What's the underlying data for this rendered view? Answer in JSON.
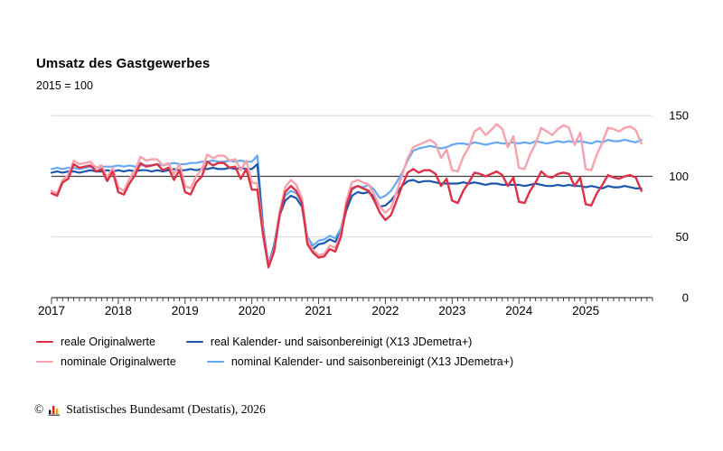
{
  "header": {
    "title": "Umsatz des Gastgewerbes",
    "subtitle": "2015 = 100"
  },
  "chart_data": {
    "type": "line",
    "title": "Umsatz des Gastgewerbes",
    "subtitle": "2015 = 100",
    "x_start": "2017-01",
    "x_end": "2025-11",
    "x_axis": {
      "years": [
        2017,
        2018,
        2019,
        2020,
        2021,
        2022,
        2023,
        2024,
        2025
      ],
      "months_per_year": 12,
      "axis_months_total": 108,
      "minor_tick": "month",
      "major_tick": "year"
    },
    "y_axis": {
      "ticks": [
        0,
        50,
        100,
        150
      ],
      "ylim": [
        0,
        150
      ],
      "reference_line": 100,
      "labels_side": "right"
    },
    "grid": "horizontal-light",
    "legend_position": "bottom",
    "series": [
      {
        "id": "real_orig",
        "label": "reale Originalwerte",
        "color": "#db3247",
        "width": 2.4,
        "z": 4,
        "values": [
          86,
          84,
          95,
          98,
          110,
          107,
          108,
          109,
          104,
          106,
          96,
          104,
          87,
          85,
          94,
          101,
          111,
          108,
          109,
          110,
          105,
          107,
          97,
          105,
          87,
          85,
          95,
          100,
          112,
          109,
          111,
          111,
          107,
          108,
          98,
          106,
          89,
          89,
          52,
          25,
          38,
          68,
          87,
          92,
          88,
          78,
          44,
          37,
          33,
          34,
          40,
          38,
          50,
          76,
          90,
          92,
          90,
          88,
          80,
          70,
          64,
          68,
          80,
          92,
          103,
          106,
          103,
          105,
          105,
          102,
          92,
          98,
          80,
          78,
          88,
          95,
          103,
          102,
          100,
          102,
          104,
          101,
          92,
          99,
          79,
          78,
          88,
          95,
          104,
          100,
          99,
          102,
          103,
          102,
          92,
          99,
          77,
          76,
          86,
          93,
          101,
          99,
          98,
          100,
          101,
          99,
          88
        ]
      },
      {
        "id": "real_adj",
        "label": "real Kalender- und saisonbereinigt (X13 JDemetra+)",
        "color": "#1957ae",
        "width": 2.2,
        "z": 2,
        "values": [
          103,
          104,
          103,
          104,
          104,
          103,
          104,
          105,
          104,
          104,
          105,
          104,
          105,
          104,
          105,
          104,
          105,
          105,
          104,
          105,
          104,
          105,
          106,
          105,
          105,
          106,
          105,
          106,
          106,
          107,
          106,
          106,
          107,
          106,
          107,
          106,
          106,
          110,
          57,
          26,
          42,
          68,
          80,
          84,
          82,
          75,
          47,
          40,
          44,
          45,
          48,
          46,
          54,
          72,
          84,
          87,
          86,
          87,
          83,
          75,
          76,
          80,
          86,
          92,
          96,
          97,
          95,
          96,
          96,
          95,
          94,
          94,
          94,
          94,
          95,
          94,
          95,
          94,
          93,
          94,
          94,
          93,
          93,
          93,
          93,
          92,
          93,
          94,
          93,
          92,
          92,
          93,
          92,
          93,
          92,
          92,
          91,
          92,
          91,
          90,
          92,
          91,
          91,
          92,
          91,
          90,
          90
        ]
      },
      {
        "id": "nom_orig",
        "label": "nominale Originalwerte",
        "color": "#f7a2ad",
        "width": 2.4,
        "z": 3,
        "values": [
          88,
          86,
          97,
          101,
          113,
          110,
          111,
          112,
          107,
          109,
          99,
          107,
          91,
          88,
          98,
          105,
          116,
          113,
          114,
          114,
          109,
          111,
          102,
          110,
          92,
          90,
          100,
          106,
          118,
          115,
          117,
          117,
          113,
          114,
          105,
          113,
          95,
          94,
          55,
          26,
          40,
          71,
          91,
          97,
          93,
          82,
          47,
          39,
          35,
          36,
          43,
          41,
          53,
          80,
          95,
          97,
          95,
          93,
          85,
          75,
          70,
          74,
          87,
          101,
          115,
          124,
          126,
          128,
          130,
          127,
          115,
          122,
          105,
          104,
          116,
          124,
          137,
          140,
          134,
          138,
          143,
          139,
          124,
          133,
          107,
          106,
          118,
          127,
          140,
          137,
          134,
          139,
          142,
          140,
          126,
          136,
          106,
          105,
          118,
          128,
          140,
          139,
          137,
          140,
          141,
          138,
          127
        ]
      },
      {
        "id": "nom_adj",
        "label": "nominal Kalender- und saisonbereinigt (X13 JDemetra+)",
        "color": "#66a8f2",
        "width": 2.2,
        "z": 1,
        "values": [
          106,
          107,
          106,
          107,
          107,
          106,
          107,
          108,
          107,
          108,
          108,
          108,
          109,
          108,
          109,
          108,
          109,
          109,
          109,
          110,
          109,
          110,
          111,
          110,
          110,
          111,
          111,
          112,
          112,
          113,
          112,
          112,
          113,
          112,
          113,
          112,
          112,
          117,
          60,
          27,
          44,
          71,
          84,
          88,
          86,
          79,
          50,
          43,
          47,
          48,
          51,
          49,
          57,
          76,
          89,
          92,
          91,
          93,
          89,
          82,
          84,
          88,
          95,
          103,
          113,
          121,
          123,
          124,
          125,
          124,
          123,
          124,
          126,
          127,
          127,
          126,
          128,
          127,
          126,
          127,
          128,
          127,
          127,
          128,
          127,
          128,
          127,
          129,
          128,
          127,
          128,
          129,
          128,
          129,
          128,
          129,
          128,
          127,
          129,
          128,
          130,
          129,
          129,
          130,
          129,
          128,
          130
        ]
      }
    ],
    "colors": {
      "grid": "#d8d8d8",
      "axis": "#404040",
      "reference_line": "#3f3f3f",
      "text": "#000000"
    }
  },
  "legend": {
    "rows": [
      [
        "real_orig",
        "real_adj"
      ],
      [
        "nom_orig",
        "nom_adj"
      ]
    ]
  },
  "footer": {
    "copyright": "©",
    "source": "Statistisches Bundesamt (Destatis), 2026"
  }
}
